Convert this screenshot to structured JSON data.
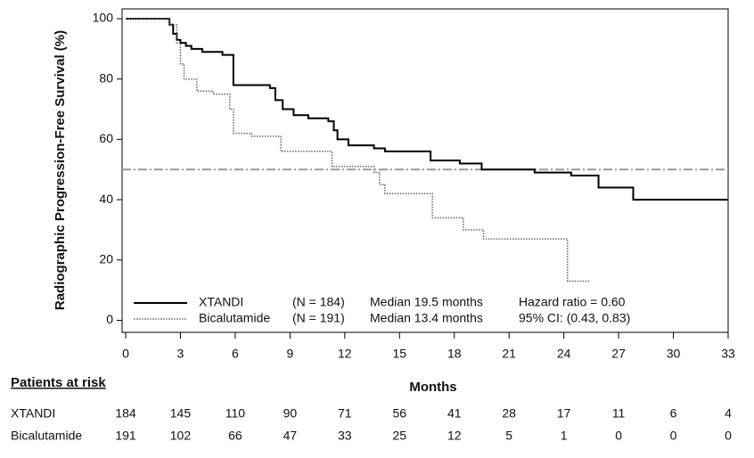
{
  "chart_data": {
    "type": "step",
    "y_label": "Radiographic Progression-Free Survival (%)",
    "x_label": "Months",
    "xlim": [
      0,
      33
    ],
    "xticks": [
      0,
      3,
      6,
      9,
      12,
      15,
      18,
      21,
      24,
      27,
      30,
      33
    ],
    "ylim": [
      -4,
      100
    ],
    "yticks": [
      0,
      20,
      40,
      60,
      80,
      100
    ],
    "reference_line": {
      "value": 50,
      "color": "#9a9a9a"
    },
    "series": [
      {
        "name": "XTANDI",
        "color": "#000000",
        "line_style": "solid",
        "legend_columns": [
          "(N = 184)",
          "Median 19.5 months",
          "Hazard ratio = 0.60"
        ],
        "x": [
          0,
          2.4,
          2.6,
          2.8,
          3.0,
          3.3,
          3.6,
          4.2,
          5.3,
          5.9,
          7.9,
          8.2,
          8.6,
          9.2,
          10.0,
          11.1,
          11.4,
          11.6,
          12.2,
          13.6,
          14.2,
          16.7,
          18.3,
          19.5,
          22.4,
          24.4,
          25.9,
          27.8,
          33
        ],
        "values": [
          100,
          98,
          95,
          93,
          92,
          91,
          90,
          89,
          88,
          78,
          77,
          73,
          70,
          68,
          67,
          66,
          63,
          60,
          58,
          57,
          56,
          53,
          52,
          50,
          49,
          48,
          44,
          40,
          40
        ]
      },
      {
        "name": "Bicalutamide",
        "color": "#666666",
        "line_style": "dotted",
        "legend_columns": [
          "(N = 191)",
          "Median 13.4 months",
          "95% CI: (0.43, 0.83)"
        ],
        "x": [
          0,
          2.4,
          2.8,
          3.0,
          3.2,
          3.9,
          4.8,
          5.7,
          5.9,
          6.9,
          8.5,
          11.3,
          13.6,
          13.9,
          14.2,
          16.8,
          18.5,
          19.6,
          24.2,
          25.4
        ],
        "values": [
          100,
          98,
          92,
          85,
          80,
          76,
          75,
          70,
          62,
          61,
          56,
          51,
          49,
          45,
          42,
          34,
          30,
          27,
          13,
          13
        ]
      }
    ],
    "risk_table": {
      "title": "Patients at risk",
      "rows": [
        {
          "label": "XTANDI",
          "values": [
            184,
            145,
            110,
            90,
            71,
            56,
            41,
            28,
            17,
            11,
            6,
            4
          ]
        },
        {
          "label": "Bicalutamide",
          "values": [
            191,
            102,
            66,
            47,
            33,
            25,
            12,
            5,
            1,
            0,
            0,
            0
          ]
        }
      ]
    }
  }
}
